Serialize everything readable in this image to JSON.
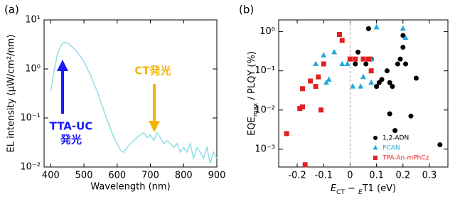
{
  "chart_data": [
    {
      "type": "line",
      "panel_label": "(a)",
      "xlabel": "Wavelength (nm)",
      "ylabel": "EL intensity (μW/cm²/nm)",
      "log_y": true,
      "color": "#8fdde6",
      "x": [
        400,
        410,
        420,
        430,
        440,
        450,
        460,
        470,
        480,
        490,
        500,
        510,
        520,
        530,
        540,
        550,
        560,
        570,
        580,
        590,
        600,
        610,
        620,
        630,
        640,
        650,
        660,
        670,
        680,
        690,
        700,
        710,
        720,
        730,
        740,
        750,
        760,
        770,
        780,
        790,
        800,
        810,
        820,
        830,
        840,
        850,
        860,
        870,
        880,
        890,
        900
      ],
      "values": [
        0.35,
        0.9,
        2.0,
        3.0,
        3.5,
        3.4,
        3.0,
        2.6,
        2.2,
        1.8,
        1.4,
        1.0,
        0.75,
        0.5,
        0.35,
        0.22,
        0.14,
        0.09,
        0.06,
        0.04,
        0.03,
        0.022,
        0.02,
        0.025,
        0.03,
        0.035,
        0.04,
        0.045,
        0.05,
        0.04,
        0.045,
        0.035,
        0.05,
        0.04,
        0.03,
        0.035,
        0.03,
        0.025,
        0.03,
        0.02,
        0.025,
        0.02,
        0.03,
        0.015,
        0.025,
        0.02,
        0.015,
        0.025,
        0.012,
        0.02,
        0.015
      ],
      "xlim": [
        380,
        900
      ],
      "xticks": [
        400,
        500,
        600,
        700,
        800,
        900
      ],
      "ylim": [
        0.01,
        10
      ],
      "yticks": [
        {
          "value": 0.01,
          "label": "10⁻²"
        },
        {
          "value": 0.1,
          "label": "10⁻¹"
        },
        {
          "value": 1,
          "label": "10⁰"
        },
        {
          "value": 10,
          "label": "10¹"
        }
      ],
      "annotations": [
        {
          "lines": [
            "TTA-UC",
            "発光"
          ],
          "color": "#1a1aff"
        },
        {
          "lines": [
            "CT発光"
          ],
          "color": "#f5b400"
        }
      ]
    },
    {
      "type": "scatter",
      "panel_label": "(b)",
      "xlabel": [
        "E",
        "CT",
        " − ",
        "E",
        "T1",
        " (eV)"
      ],
      "ylabel": [
        "EQE",
        "max",
        " / PLQY (%)"
      ],
      "log_y": true,
      "reference_line_x": 0,
      "legend": "lower right",
      "xlim": [
        -0.27,
        0.37
      ],
      "xticks": [
        -0.2,
        -0.1,
        0,
        0.1,
        0.2,
        0.3
      ],
      "ylim": [
        0.00035,
        2
      ],
      "yticks": [
        {
          "value": 0.001,
          "label": "10⁻³"
        },
        {
          "value": 0.01,
          "label": "10⁻²"
        },
        {
          "value": 0.1,
          "label": "10⁻¹"
        },
        {
          "value": 1,
          "label": "10⁰"
        }
      ],
      "series": [
        {
          "name": "1,2-ADN",
          "color": "#000000",
          "marker": "circle",
          "x": [
            0.02,
            0.03,
            0.06,
            0.07,
            0.08,
            0.1,
            0.11,
            0.12,
            0.14,
            0.15,
            0.15,
            0.16,
            0.17,
            0.18,
            0.19,
            0.2,
            0.2,
            0.21,
            0.23,
            0.25,
            0.34
          ],
          "values": [
            0.15,
            0.3,
            0.15,
            1.2,
            0.2,
            0.04,
            0.05,
            0.06,
            0.1,
            0.05,
            0.008,
            0.04,
            0.003,
            0.15,
            0.2,
            0.4,
            0.8,
            0.15,
            0.007,
            0.065,
            0.0013
          ]
        },
        {
          "name": "PCAN",
          "color": "#22aadd",
          "marker": "triangle",
          "x": [
            -0.13,
            -0.1,
            -0.09,
            -0.08,
            -0.06,
            -0.03,
            -0.01,
            0.01,
            0.04,
            0.05,
            0.08,
            0.08,
            0.1,
            0.2,
            0.21
          ],
          "values": [
            0.15,
            0.25,
            0.05,
            0.06,
            0.3,
            0.15,
            0.15,
            0.04,
            0.04,
            0.07,
            0.2,
            0.05,
            1.3,
            1.2,
            0.7
          ]
        },
        {
          "name": "TPA-An-mPhCz",
          "color": "#e02020",
          "marker": "square",
          "x": [
            -0.24,
            -0.19,
            -0.18,
            -0.18,
            -0.17,
            -0.15,
            -0.13,
            -0.12,
            -0.11,
            -0.1,
            -0.04,
            -0.03,
            0.0,
            0.02,
            0.05,
            0.07,
            0.08
          ],
          "values": [
            0.0025,
            0.011,
            0.012,
            0.035,
            0.0004,
            0.055,
            0.04,
            0.07,
            0.01,
            0.15,
            0.85,
            0.6,
            0.2,
            0.2,
            0.2,
            0.2,
            0.1
          ]
        }
      ]
    }
  ]
}
